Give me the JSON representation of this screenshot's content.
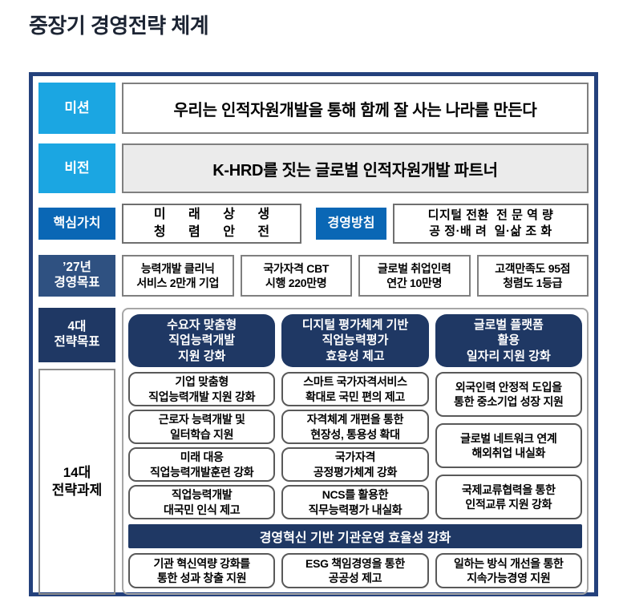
{
  "title": "중장기 경영전략 체계",
  "mission": {
    "label": "미션",
    "text": "우리는 인적자원개발을 통해 함께 잘 사는 나라를 만든다"
  },
  "vision": {
    "label": "비전",
    "text": "K-HRD를 짓는 글로벌 인적자원개발 파트너"
  },
  "core_values": {
    "label": "핵심가치",
    "lines": [
      "미 래 상 생",
      "청 렴 안 전"
    ]
  },
  "policy": {
    "label": "경영방침",
    "lines": [
      "디지털 전환  전 문 역 량",
      "공 정·배 려  일·삶 조 화"
    ]
  },
  "goals_2027": {
    "label": [
      "’27년",
      "경영목표"
    ],
    "items": [
      [
        "능력개발 클리닉",
        "서비스 2만개 기업"
      ],
      [
        "국가자격 CBT",
        "시행 220만명"
      ],
      [
        "글로벌 취업인력",
        "연간 10만명"
      ],
      [
        "고객만족도 95점",
        "청렴도 1등급"
      ]
    ]
  },
  "strategic_goals": {
    "label": [
      "4대",
      "전략목표"
    ],
    "headers": [
      [
        "수요자 맞춤형",
        "직업능력개발",
        "지원 강화"
      ],
      [
        "디지털 평가체계 기반",
        "직업능력평가",
        "효용성 제고"
      ],
      [
        "글로벌 플랫폼",
        "활용",
        "일자리 지원 강화"
      ]
    ]
  },
  "strategic_tasks": {
    "label": [
      "14대",
      "전략과제"
    ],
    "columns": [
      [
        [
          "기업 맞춤형",
          "직업능력개발 지원 강화"
        ],
        [
          "근로자 능력개발 및",
          "일터학습 지원"
        ],
        [
          "미래 대응",
          "직업능력개발훈련 강화"
        ],
        [
          "직업능력개발",
          "대국민 인식 제고"
        ]
      ],
      [
        [
          "스마트 국가자격서비스",
          "확대로 국민 편의 제고"
        ],
        [
          "자격체계 개편을 통한",
          "현장성, 통용성 확대"
        ],
        [
          "국가자격",
          "공정평가체계 강화"
        ],
        [
          "NCS를 활용한",
          "직무능력평가 내실화"
        ]
      ],
      [
        [
          "외국인력 안정적 도입을",
          "통한 중소기업 성장 지원"
        ],
        [
          "글로벌 네트워크 연계",
          "해외취업 내실화"
        ],
        [
          "국제교류협력을 통한",
          "인적교류 지원 강화"
        ]
      ]
    ],
    "innovation_bar": "경영혁신 기반 기관운영 효율성 강화",
    "innovation_tasks": [
      [
        "기관 혁신역량 강화를",
        "통한 성과 창출 지원"
      ],
      [
        "ESG 책임경영을 통한",
        "공공성 제고"
      ],
      [
        "일하는 방식 개선을 통한",
        "지속가능경영 지원"
      ]
    ]
  },
  "colors": {
    "cyan": "#1ba6e2",
    "blue": "#0a67b5",
    "steel_navy": "#2f5181",
    "navy": "#1f3864",
    "frame": "#24417c"
  }
}
